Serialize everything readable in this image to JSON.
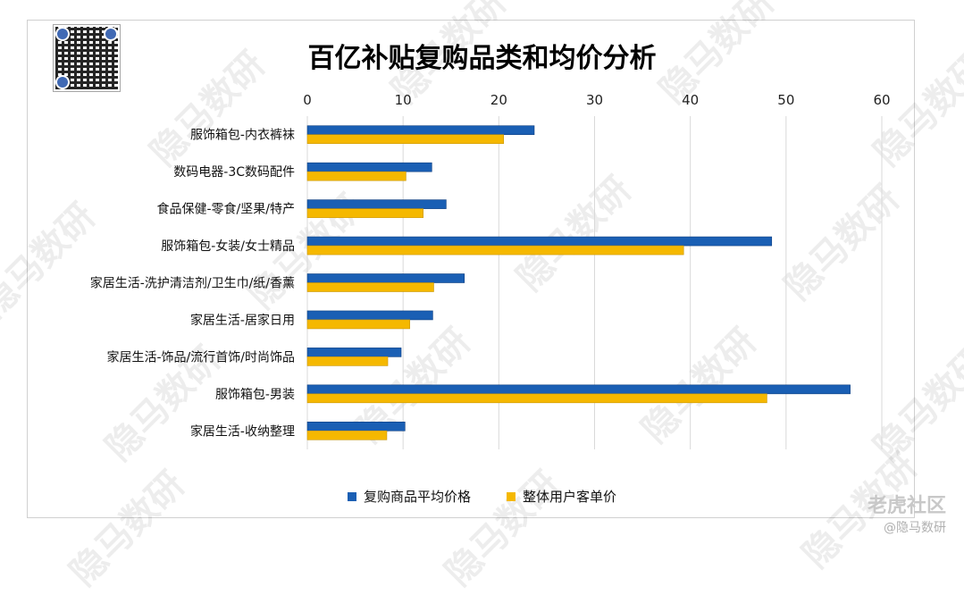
{
  "watermark_text": "隐马数研",
  "qr_code": {
    "icon": "qr-code-icon"
  },
  "brand": {
    "name": "老虎社区",
    "handle": "@隐马数研"
  },
  "colors": {
    "series1": "#1a5fb4",
    "series2": "#f5b800",
    "grid": "#d9d9d9"
  },
  "chart_data": {
    "type": "bar",
    "orientation": "horizontal",
    "title": "百亿补贴复购品类和均价分析",
    "xlim": [
      0,
      60
    ],
    "xticks": [
      0,
      10,
      20,
      30,
      40,
      50,
      60
    ],
    "grid": true,
    "legend_position": "bottom",
    "categories": [
      "服饰箱包-内衣裤袜",
      "数码电器-3C数码配件",
      "食品保健-零食/坚果/特产",
      "服饰箱包-女装/女士精品",
      "家居生活-洗护清洁剂/卫生巾/纸/香薰",
      "家居生活-居家日用",
      "家居生活-饰品/流行首饰/时尚饰品",
      "服饰箱包-男装",
      "家居生活-收纳整理"
    ],
    "series": [
      {
        "name": "复购商品平均价格",
        "values": [
          23.7,
          13.0,
          14.5,
          48.5,
          16.4,
          13.1,
          9.8,
          56.7,
          10.2
        ]
      },
      {
        "name": "整体用户客单价",
        "values": [
          20.5,
          10.3,
          12.1,
          39.3,
          13.2,
          10.7,
          8.4,
          48.0,
          8.3
        ]
      }
    ]
  }
}
